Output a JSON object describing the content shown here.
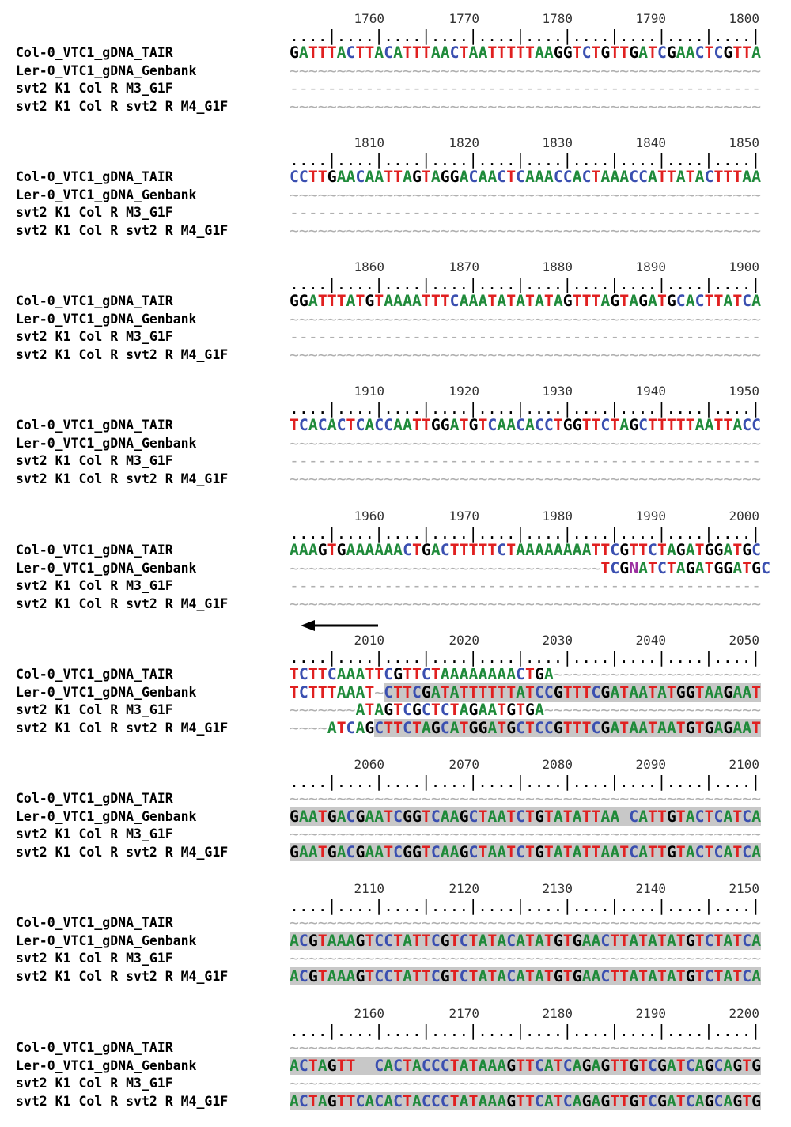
{
  "row_labels": [
    "Col-0_VTC1_gDNA_TAIR",
    "Ler-0_VTC1_gDNA_Genbank",
    "svt2 K1 Col R M3_G1F",
    "svt2 K1 Col R svt2 R M4_G1F"
  ],
  "ruler_ticks": "....|....|....|....|....|....|....|....|....|....|",
  "colors": {
    "A": "#1f8a3a",
    "T": "#e02020",
    "G": "#000000",
    "C": "#3a4fb0",
    "N": "#9b2fa0",
    "gap": "#b0b0b0",
    "highlight": "#c8c8c8"
  },
  "blocks": [
    {
      "numbers": [
        "1760",
        "1770",
        "1780",
        "1790",
        "1800"
      ],
      "rows": [
        "GATTTACTTACATTTAACTAATTTTTAAGGTCTGTTGATCGAACTCGTTA",
        "~~~~~~~~~~~~~~~~~~~~~~~~~~~~~~~~~~~~~~~~~~~~~~~~~~",
        "--------------------------------------------------",
        "~~~~~~~~~~~~~~~~~~~~~~~~~~~~~~~~~~~~~~~~~~~~~~~~~~"
      ],
      "hl": [
        null,
        null,
        null,
        null
      ]
    },
    {
      "numbers": [
        "1810",
        "1820",
        "1830",
        "1840",
        "1850"
      ],
      "rows": [
        "CCTTGAACAATTAGTAGGACAACTCAAACCACTAAACCATTATACTTTAA",
        "~~~~~~~~~~~~~~~~~~~~~~~~~~~~~~~~~~~~~~~~~~~~~~~~~~",
        "--------------------------------------------------",
        "~~~~~~~~~~~~~~~~~~~~~~~~~~~~~~~~~~~~~~~~~~~~~~~~~~"
      ],
      "hl": [
        null,
        null,
        null,
        null
      ]
    },
    {
      "numbers": [
        "1860",
        "1870",
        "1880",
        "1890",
        "1900"
      ],
      "rows": [
        "GGATTTATGTAAAATTTCAAATATATATAGTTTAGTAGATGCACTTATCA",
        "~~~~~~~~~~~~~~~~~~~~~~~~~~~~~~~~~~~~~~~~~~~~~~~~~~",
        "--------------------------------------------------",
        "~~~~~~~~~~~~~~~~~~~~~~~~~~~~~~~~~~~~~~~~~~~~~~~~~~"
      ],
      "hl": [
        null,
        null,
        null,
        null
      ]
    },
    {
      "numbers": [
        "1910",
        "1920",
        "1930",
        "1940",
        "1950"
      ],
      "rows": [
        "TCACACTCACCAATTGGATGTCAACACCTGGTTCTAGCTTTTTAATTACC",
        "~~~~~~~~~~~~~~~~~~~~~~~~~~~~~~~~~~~~~~~~~~~~~~~~~~",
        "--------------------------------------------------",
        "~~~~~~~~~~~~~~~~~~~~~~~~~~~~~~~~~~~~~~~~~~~~~~~~~~"
      ],
      "hl": [
        null,
        null,
        null,
        null
      ]
    },
    {
      "numbers": [
        "1960",
        "1970",
        "1980",
        "1990",
        "2000"
      ],
      "rows": [
        "AAAGTGAAAAAACTGACTTTTTCTAAAAAAAATTCGTTCTAGATGGATGC",
        "~~~~~~~~~~~~~~~~~~~~~~~~~~~~~~~~~TCGNATCTAGATGGATGC",
        "--------------------------------------------------",
        "~~~~~~~~~~~~~~~~~~~~~~~~~~~~~~~~~~~~~~~~~~~~~~~~~~"
      ],
      "hl": [
        null,
        null,
        null,
        null
      ]
    },
    {
      "numbers": [
        "2010",
        "2020",
        "2030",
        "2040",
        "2050"
      ],
      "rows": [
        "TCTTCAAATTCGTTCTAAAAAAAACTGA~~~~~~~~~~~~~~~~~~~~~~",
        "TCTTTAAAT~CTTCGATATTTTTTATCCGTTTCGATAATATGGTAAGAAT",
        "~~~~~~~ATAGTCGCTCTAGAATGTGA~~~~~~~~~~~~~~~~~~~~~~~",
        "~~~~ATCAGCTTCTAGCATGGATGCTCCGTTTCGATAATAATGTGAGAAT"
      ],
      "hl": [
        null,
        [
          10,
          50
        ],
        null,
        [
          9,
          50
        ]
      ]
    },
    {
      "numbers": [
        "2060",
        "2070",
        "2080",
        "2090",
        "2100"
      ],
      "rows": [
        "~~~~~~~~~~~~~~~~~~~~~~~~~~~~~~~~~~~~~~~~~~~~~~~~~~",
        "GAATGACGAATCGGTCAAGCTAATCTGTATATTAA CATTGTACTCATCA",
        "~~~~~~~~~~~~~~~~~~~~~~~~~~~~~~~~~~~~~~~~~~~~~~~~~~",
        "GAATGACGAATCGGTCAAGCTAATCTGTATATTAATCATTGTACTCATCA"
      ],
      "hl": [
        null,
        [
          0,
          50
        ],
        null,
        [
          0,
          50
        ]
      ]
    },
    {
      "numbers": [
        "2110",
        "2120",
        "2130",
        "2140",
        "2150"
      ],
      "rows": [
        "~~~~~~~~~~~~~~~~~~~~~~~~~~~~~~~~~~~~~~~~~~~~~~~~~~",
        "ACGTAAAGTCCTATTCGTCTATACATATGTGAACTTATATATGTCTATCA",
        "~~~~~~~~~~~~~~~~~~~~~~~~~~~~~~~~~~~~~~~~~~~~~~~~~~",
        "ACGTAAAGTCCTATTCGTCTATACATATGTGAACTTATATATGTCTATCA"
      ],
      "hl": [
        null,
        [
          0,
          50
        ],
        null,
        [
          0,
          50
        ]
      ]
    },
    {
      "numbers": [
        "2160",
        "2170",
        "2180",
        "2190",
        "2200"
      ],
      "rows": [
        "~~~~~~~~~~~~~~~~~~~~~~~~~~~~~~~~~~~~~~~~~~~~~~~~~~",
        "ACTAGTT  CACTACCCTATAAAGTTCATCAGAGTTGTCGATCAGCAGTG",
        "~~~~~~~~~~~~~~~~~~~~~~~~~~~~~~~~~~~~~~~~~~~~~~~~~~",
        "ACTAGTTCACACTACCCTATAAAGTTCATCAGAGTTGTCGATCAGCAGTG"
      ],
      "hl": [
        null,
        [
          0,
          50
        ],
        null,
        [
          0,
          50
        ]
      ]
    }
  ]
}
